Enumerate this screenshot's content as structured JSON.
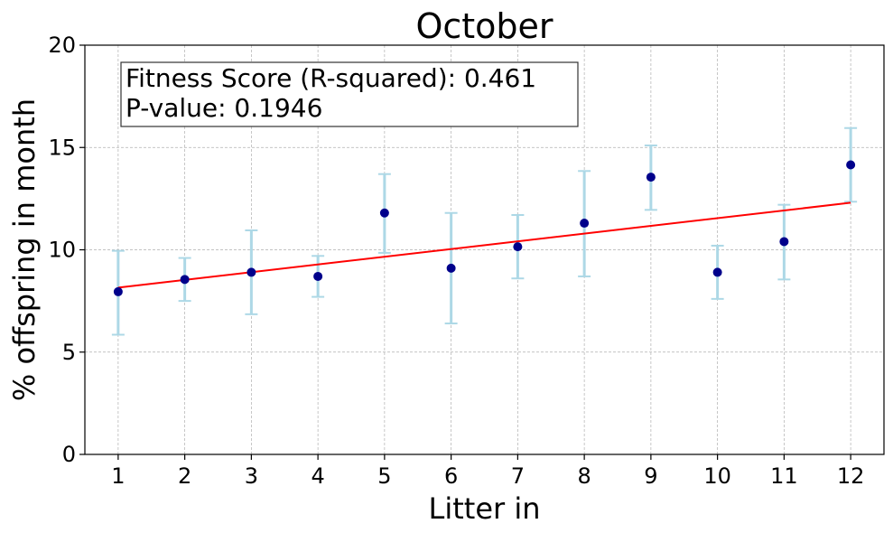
{
  "chart_data": {
    "type": "scatter",
    "title": "October",
    "xlabel": "Litter in",
    "ylabel": "% offspring in month",
    "x": [
      1,
      2,
      3,
      4,
      5,
      6,
      7,
      8,
      9,
      10,
      11,
      12
    ],
    "y": [
      7.95,
      8.55,
      8.9,
      8.7,
      11.8,
      9.1,
      10.15,
      11.3,
      13.55,
      8.9,
      10.4,
      14.15
    ],
    "error_low": [
      5.85,
      7.5,
      6.85,
      7.7,
      9.85,
      6.4,
      8.6,
      8.7,
      11.95,
      7.6,
      8.55,
      12.35
    ],
    "error_high": [
      9.95,
      9.6,
      10.95,
      9.7,
      13.7,
      11.8,
      11.7,
      13.85,
      15.1,
      10.2,
      12.2,
      15.95
    ],
    "fit_line": {
      "x": [
        1,
        12
      ],
      "y": [
        8.15,
        12.3
      ]
    },
    "xticks": [
      "1",
      "2",
      "3",
      "4",
      "5",
      "6",
      "7",
      "8",
      "9",
      "10",
      "11",
      "12"
    ],
    "yticks": [
      "0",
      "5",
      "10",
      "15",
      "20"
    ],
    "xlim": [
      0.5,
      12.5
    ],
    "ylim": [
      0,
      20
    ],
    "grid": true,
    "annotation": {
      "line1": "Fitness Score (R-squared): 0.461",
      "line2": "P-value: 0.1946"
    },
    "colors": {
      "points": "#00008b",
      "error_bars": "#add8e6",
      "fit_line": "#ff0000",
      "grid": "#b0b0b0"
    }
  }
}
